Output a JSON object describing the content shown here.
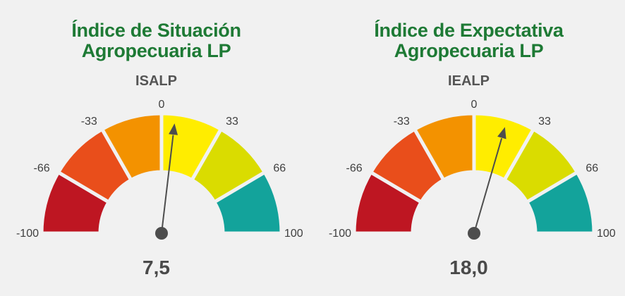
{
  "chart_data": [
    {
      "type": "gauge",
      "title_lines": [
        "Índice de Situación",
        "Agropecuaria LP"
      ],
      "abbreviation": "ISALP",
      "value": 7.5,
      "value_label": "7,5",
      "range": [
        -100,
        100
      ],
      "tick_labels": [
        "-100",
        "-66",
        "-33",
        "0",
        "33",
        "66",
        "100"
      ],
      "bands": [
        {
          "from": -100,
          "to": -66,
          "color": "#be1622"
        },
        {
          "from": -66,
          "to": -33,
          "color": "#e94e1b"
        },
        {
          "from": -33,
          "to": 0,
          "color": "#f39200"
        },
        {
          "from": 0,
          "to": 33,
          "color": "#ffed00"
        },
        {
          "from": 33,
          "to": 66,
          "color": "#dadc00"
        },
        {
          "from": 66,
          "to": 100,
          "color": "#13a39b"
        }
      ]
    },
    {
      "type": "gauge",
      "title_lines": [
        "Índice de Expectativa",
        "Agropecuaria LP"
      ],
      "abbreviation": "IEALP",
      "value": 18.0,
      "value_label": "18,0",
      "range": [
        -100,
        100
      ],
      "tick_labels": [
        "-100",
        "-66",
        "-33",
        "0",
        "33",
        "66",
        "100"
      ],
      "bands": [
        {
          "from": -100,
          "to": -66,
          "color": "#be1622"
        },
        {
          "from": -66,
          "to": -33,
          "color": "#e94e1b"
        },
        {
          "from": -33,
          "to": 0,
          "color": "#f39200"
        },
        {
          "from": 0,
          "to": 33,
          "color": "#ffed00"
        },
        {
          "from": 33,
          "to": 66,
          "color": "#dadc00"
        },
        {
          "from": 66,
          "to": 100,
          "color": "#13a39b"
        }
      ]
    }
  ],
  "colors": {
    "title": "#1e7a35",
    "needle": "#4d4d4d",
    "separator": "#f1f1f1"
  }
}
